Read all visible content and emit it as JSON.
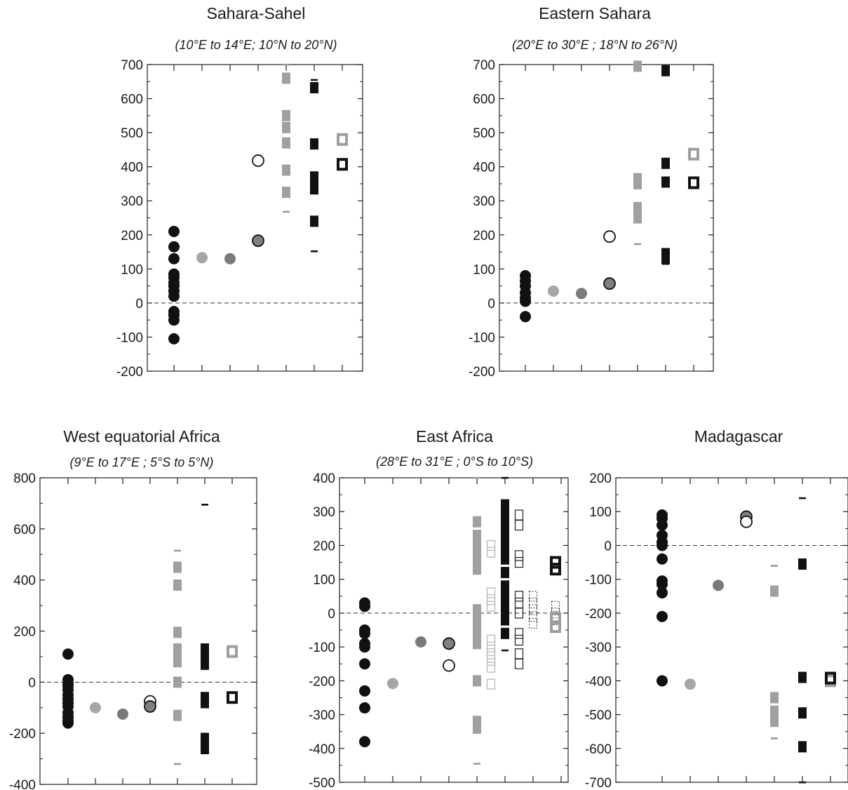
{
  "chart_data": [
    {
      "type": "scatter",
      "title": "Sahara-Sahel",
      "subtitle": "(10°E to 14°E; 10°N to 20°N)",
      "ylim": [
        -200,
        700
      ],
      "yticks": [
        -200,
        -100,
        0,
        100,
        200,
        300,
        400,
        500,
        600,
        700
      ],
      "columns": 7,
      "grid": false,
      "zero_line": true,
      "marks": [
        {
          "col": 1,
          "style": "black-dot",
          "values": [
            210,
            165,
            130,
            85,
            75,
            60,
            50,
            35,
            20,
            -25,
            -35,
            -50,
            -105
          ]
        },
        {
          "col": 2,
          "style": "lightgray-dot",
          "values": [
            133
          ]
        },
        {
          "col": 3,
          "style": "gray-dot",
          "values": [
            130
          ]
        },
        {
          "col": 4,
          "style": "open-dot",
          "values": [
            418
          ]
        },
        {
          "col": 4,
          "style": "gray-outlined-dot",
          "values": [
            183
          ]
        },
        {
          "col": 5,
          "style": "gray-square",
          "values": [
            660,
            550,
            515,
            470,
            390,
            325
          ]
        },
        {
          "col": 5,
          "style": "gray-dash",
          "values": [
            700,
            268
          ]
        },
        {
          "col": 6,
          "style": "black-square",
          "values": [
            632,
            467,
            370,
            350,
            335,
            240
          ]
        },
        {
          "col": 6,
          "style": "black-dash",
          "values": [
            655,
            152
          ]
        },
        {
          "col": 7,
          "style": "gray-open-square",
          "values": [
            480
          ]
        },
        {
          "col": 7,
          "style": "black-open-square",
          "values": [
            407
          ]
        }
      ]
    },
    {
      "type": "scatter",
      "title": "Eastern Sahara",
      "subtitle": "(20°E to 30°E ; 18°N to 26°N)",
      "ylim": [
        -200,
        700
      ],
      "yticks": [
        -200,
        -100,
        0,
        100,
        200,
        300,
        400,
        500,
        600,
        700
      ],
      "columns": 7,
      "grid": false,
      "zero_line": true,
      "marks": [
        {
          "col": 1,
          "style": "black-dot",
          "values": [
            80,
            65,
            50,
            30,
            15,
            5,
            -40
          ]
        },
        {
          "col": 2,
          "style": "lightgray-dot",
          "values": [
            35
          ]
        },
        {
          "col": 3,
          "style": "gray-dot",
          "values": [
            28
          ]
        },
        {
          "col": 4,
          "style": "open-dot",
          "values": [
            195
          ]
        },
        {
          "col": 4,
          "style": "gray-outlined-dot",
          "values": [
            57
          ]
        },
        {
          "col": 5,
          "style": "gray-square",
          "values": [
            695,
            365,
            350,
            280,
            265,
            250
          ]
        },
        {
          "col": 5,
          "style": "gray-dash",
          "values": [
            173
          ]
        },
        {
          "col": 6,
          "style": "black-square",
          "values": [
            682,
            410,
            355,
            145,
            130
          ]
        },
        {
          "col": 6,
          "style": "black-dash",
          "values": [
            115
          ]
        },
        {
          "col": 7,
          "style": "gray-open-square",
          "values": [
            437
          ]
        },
        {
          "col": 7,
          "style": "black-open-square",
          "values": [
            353
          ]
        }
      ]
    },
    {
      "type": "scatter",
      "title": "West equatorial Africa",
      "subtitle": "(9°E to 17°E ; 5°S to 5°N)",
      "ylim": [
        -400,
        800
      ],
      "yticks": [
        -400,
        -200,
        0,
        200,
        400,
        600,
        800
      ],
      "columns": 7,
      "grid": false,
      "zero_line": true,
      "marks": [
        {
          "col": 1,
          "style": "black-dot",
          "values": [
            110,
            10,
            -5,
            -15,
            -30,
            -50,
            -65,
            -80,
            -95,
            -120,
            -135,
            -150,
            -160
          ]
        },
        {
          "col": 2,
          "style": "lightgray-dot",
          "values": [
            -100
          ]
        },
        {
          "col": 3,
          "style": "gray-dot",
          "values": [
            -125
          ]
        },
        {
          "col": 4,
          "style": "open-dot",
          "values": [
            -75
          ]
        },
        {
          "col": 4,
          "style": "gray-outlined-dot",
          "values": [
            -95
          ]
        },
        {
          "col": 5,
          "style": "gray-square",
          "values": [
            450,
            380,
            195,
            130,
            100,
            80,
            0,
            -130
          ]
        },
        {
          "col": 5,
          "style": "gray-dash",
          "values": [
            515,
            -320
          ]
        },
        {
          "col": 6,
          "style": "black-square",
          "values": [
            130,
            110,
            90,
            70,
            -60,
            -80,
            -220,
            -240,
            -260
          ]
        },
        {
          "col": 6,
          "style": "black-dash",
          "values": [
            695,
            -275
          ]
        },
        {
          "col": 7,
          "style": "gray-open-square",
          "values": [
            120
          ]
        },
        {
          "col": 7,
          "style": "black-open-square",
          "values": [
            -60
          ]
        }
      ]
    },
    {
      "type": "scatter",
      "title": "East Africa",
      "subtitle": "(28°E to 31°E ; 0°S to 10°S)",
      "ylim": [
        -500,
        400
      ],
      "yticks": [
        -500,
        -400,
        -300,
        -200,
        -100,
        0,
        100,
        200,
        300,
        400
      ],
      "columns": 8,
      "grid": false,
      "zero_line": true,
      "marks": [
        {
          "col": 1,
          "style": "black-dot",
          "values": [
            30,
            20,
            -50,
            -60,
            -90,
            -100,
            -150,
            -230,
            -280,
            -380
          ]
        },
        {
          "col": 2,
          "style": "lightgray-dot",
          "values": [
            -208
          ]
        },
        {
          "col": 3,
          "style": "gray-dot",
          "values": [
            -85
          ]
        },
        {
          "col": 4,
          "style": "gray-outlined-dot",
          "values": [
            -90
          ]
        },
        {
          "col": 4,
          "style": "open-dot",
          "values": [
            -155
          ]
        },
        {
          "col": 5,
          "style": "gray-square",
          "values": [
            270,
            230,
            210,
            190,
            170,
            150,
            130,
            10,
            -10,
            -40,
            -65,
            -90,
            -200,
            -320,
            -340
          ]
        },
        {
          "col": 5,
          "style": "gray-dash",
          "values": [
            400,
            -445
          ]
        },
        {
          "col": 5.5,
          "style": "lightgray-open-square",
          "values": [
            200,
            180,
            60,
            40,
            20,
            -80,
            -100,
            -120,
            -140,
            -160,
            -210
          ]
        },
        {
          "col": 6,
          "style": "black-square",
          "values": [
            320,
            300,
            280,
            260,
            240,
            220,
            200,
            180,
            160,
            120,
            80,
            60,
            40,
            20,
            0,
            -20,
            -60
          ]
        },
        {
          "col": 6,
          "style": "black-dash",
          "values": [
            400,
            -110
          ]
        },
        {
          "col": 6.5,
          "style": "black-thin-open-square",
          "values": [
            290,
            260,
            170,
            150,
            50,
            30,
            0,
            -60,
            -80,
            -120,
            -150
          ]
        },
        {
          "col": 7,
          "style": "dotted-open-square",
          "values": [
            50,
            30,
            10,
            -10,
            -30
          ]
        },
        {
          "col": 7.8,
          "style": "dotted-open-square",
          "values": [
            20,
            0,
            -20
          ]
        },
        {
          "col": 7.8,
          "style": "gray-open-square",
          "values": [
            -15,
            -40
          ]
        },
        {
          "col": 7.8,
          "style": "black-open-square",
          "values": [
            150,
            130
          ]
        }
      ]
    },
    {
      "type": "scatter",
      "title": "Madagascar",
      "subtitle": "",
      "ylim": [
        -700,
        200
      ],
      "yticks": [
        -700,
        -600,
        -500,
        -400,
        -300,
        -200,
        -100,
        0,
        100,
        200
      ],
      "columns": 7,
      "grid": false,
      "zero_line": true,
      "marks": [
        {
          "col": 1,
          "style": "black-dot",
          "values": [
            90,
            80,
            60,
            30,
            10,
            0,
            -40,
            -105,
            -115,
            -140,
            -210,
            -400
          ]
        },
        {
          "col": 2,
          "style": "lightgray-dot",
          "values": [
            -410
          ]
        },
        {
          "col": 3,
          "style": "gray-dot",
          "values": [
            -118
          ]
        },
        {
          "col": 4,
          "style": "gray-outlined-dot",
          "values": [
            85
          ]
        },
        {
          "col": 4,
          "style": "open-dot",
          "values": [
            70
          ]
        },
        {
          "col": 5,
          "style": "gray-square",
          "values": [
            -135,
            -450,
            -490,
            -520
          ]
        },
        {
          "col": 5,
          "style": "gray-dash",
          "values": [
            -60,
            -570
          ]
        },
        {
          "col": 6,
          "style": "black-square",
          "values": [
            -55,
            -390,
            -495,
            -595
          ]
        },
        {
          "col": 6,
          "style": "black-dash",
          "values": [
            140,
            -700
          ]
        },
        {
          "col": 7,
          "style": "gray-open-square",
          "values": [
            -400
          ]
        },
        {
          "col": 7,
          "style": "black-open-square",
          "values": [
            -392
          ]
        }
      ]
    }
  ]
}
